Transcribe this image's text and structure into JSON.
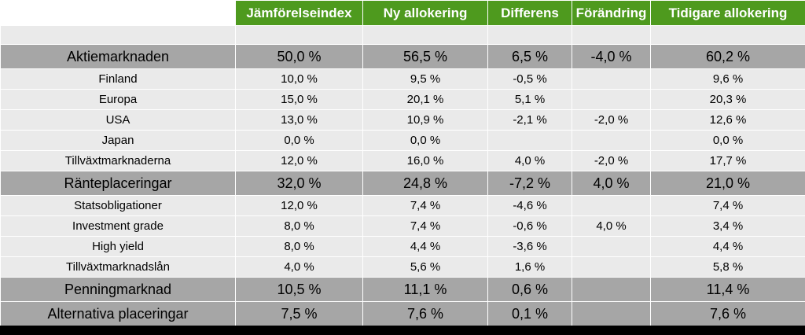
{
  "header": {
    "columns": [
      "",
      "Jämförelseindex",
      "Ny allokering",
      "Differens",
      "Förändring",
      "Tidigare allokering"
    ]
  },
  "rows": [
    {
      "label": "Aktiemarknaden",
      "type": "major",
      "jamforelseindex": "50,0 %",
      "ny": "56,5 %",
      "differens": "6,5 %",
      "forandring": "-4,0 %",
      "tidigare": "60,2 %"
    },
    {
      "label": "Finland",
      "type": "minor",
      "jamforelseindex": "10,0 %",
      "ny": "9,5 %",
      "differens": "-0,5 %",
      "forandring": "",
      "tidigare": "9,6 %"
    },
    {
      "label": "Europa",
      "type": "minor",
      "jamforelseindex": "15,0 %",
      "ny": "20,1 %",
      "differens": "5,1 %",
      "forandring": "",
      "tidigare": "20,3 %"
    },
    {
      "label": "USA",
      "type": "minor",
      "jamforelseindex": "13,0 %",
      "ny": "10,9 %",
      "differens": "-2,1 %",
      "forandring": "-2,0 %",
      "tidigare": "12,6 %"
    },
    {
      "label": "Japan",
      "type": "minor",
      "jamforelseindex": "0,0 %",
      "ny": "0,0 %",
      "differens": "",
      "forandring": "",
      "tidigare": "0,0 %"
    },
    {
      "label": "Tillväxtmarknaderna",
      "type": "minor",
      "jamforelseindex": "12,0 %",
      "ny": "16,0 %",
      "differens": "4,0 %",
      "forandring": "-2,0 %",
      "tidigare": "17,7 %"
    },
    {
      "label": "Ränteplaceringar",
      "type": "major",
      "jamforelseindex": "32,0 %",
      "ny": "24,8 %",
      "differens": "-7,2 %",
      "forandring": "4,0 %",
      "tidigare": "21,0 %"
    },
    {
      "label": "Statsobligationer",
      "type": "minor",
      "jamforelseindex": "12,0 %",
      "ny": "7,4 %",
      "differens": "-4,6 %",
      "forandring": "",
      "tidigare": "7,4 %"
    },
    {
      "label": "Investment grade",
      "type": "minor",
      "jamforelseindex": "8,0 %",
      "ny": "7,4 %",
      "differens": "-0,6 %",
      "forandring": "4,0 %",
      "tidigare": "3,4 %"
    },
    {
      "label": "High yield",
      "type": "minor",
      "jamforelseindex": "8,0 %",
      "ny": "4,4 %",
      "differens": "-3,6 %",
      "forandring": "",
      "tidigare": "4,4 %"
    },
    {
      "label": "Tillväxtmarknadslån",
      "type": "minor",
      "jamforelseindex": "4,0 %",
      "ny": "5,6 %",
      "differens": "1,6 %",
      "forandring": "",
      "tidigare": "5,8 %"
    },
    {
      "label": "Penningmarknad",
      "type": "major",
      "jamforelseindex": "10,5 %",
      "ny": "11,1 %",
      "differens": "0,6 %",
      "forandring": "",
      "tidigare": "11,4 %"
    },
    {
      "label": "Alternativa placeringar",
      "type": "major",
      "jamforelseindex": "7,5 %",
      "ny": "7,6 %",
      "differens": "0,1 %",
      "forandring": "",
      "tidigare": "7,6 %"
    }
  ]
}
